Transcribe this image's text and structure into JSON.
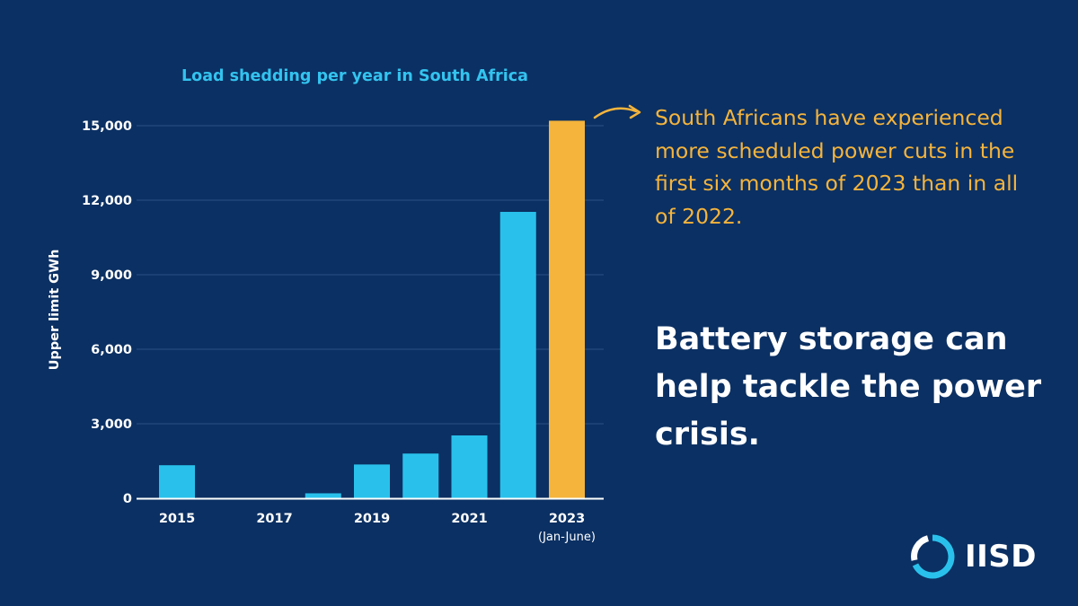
{
  "chart_data": {
    "type": "bar",
    "title": "Load shedding per year in South Africa",
    "ylabel": "Upper limit GWh",
    "xlabel": "",
    "ylim": [
      0,
      15000
    ],
    "yticks": [
      "0",
      "3,000",
      "6,000",
      "9,000",
      "12,000",
      "15,000"
    ],
    "ytick_values": [
      0,
      3000,
      6000,
      9000,
      12000,
      15000
    ],
    "categories": [
      "2015",
      "2016",
      "2017",
      "2018",
      "2019",
      "2020",
      "2021",
      "2022",
      "2023"
    ],
    "values": [
      1330,
      0,
      0,
      200,
      1360,
      1800,
      2530,
      11530,
      15200
    ],
    "xtick_labels": [
      "2015",
      "",
      "2017",
      "",
      "2019",
      "",
      "2021",
      "",
      "2023"
    ],
    "xtick_sublabel": "(Jan-June)",
    "bar_color": "#29c1ec",
    "highlight_index": 8,
    "highlight_color": "#f5b43c",
    "grid": true
  },
  "callout": "South Africans have experienced more scheduled power cuts in the first six months of 2023 than in all of 2022.",
  "headline": "Battery storage can help tackle the power crisis.",
  "logo": {
    "text": "IISD"
  },
  "colors": {
    "background": "#0b3063",
    "title": "#33c3ef",
    "text": "#ffffff",
    "accent": "#f5b43c",
    "bar": "#29c1ec",
    "logo_ring": "#29c1ec"
  }
}
